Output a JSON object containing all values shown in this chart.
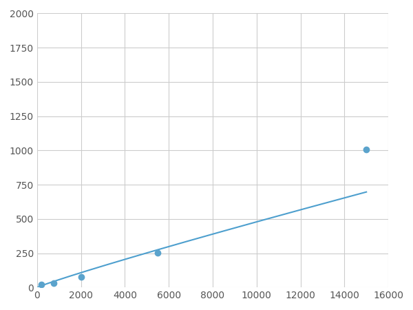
{
  "x": [
    200,
    750,
    2000,
    5500,
    15000
  ],
  "y": [
    20,
    30,
    75,
    255,
    1005
  ],
  "line_color": "#4d9fce",
  "marker_color": "#5ba3cc",
  "marker_size": 6,
  "linewidth": 1.5,
  "xlim": [
    0,
    16000
  ],
  "ylim": [
    0,
    2000
  ],
  "xticks": [
    0,
    2000,
    4000,
    6000,
    8000,
    10000,
    12000,
    14000,
    16000
  ],
  "yticks": [
    0,
    250,
    500,
    750,
    1000,
    1250,
    1500,
    1750,
    2000
  ],
  "grid_color": "#cccccc",
  "background_color": "#ffffff",
  "fig_bg_color": "#ffffff"
}
